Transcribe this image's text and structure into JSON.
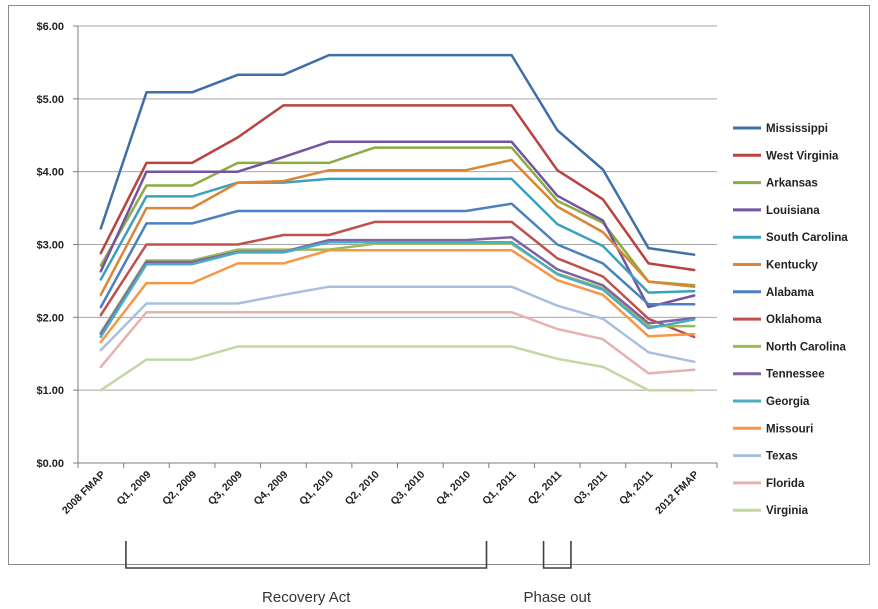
{
  "chart_data": {
    "type": "line",
    "title": "",
    "xlabel": "",
    "ylabel": "",
    "ylim": [
      0,
      6
    ],
    "yticks": [
      0,
      1,
      2,
      3,
      4,
      5,
      6
    ],
    "ytick_labels": [
      "$0.00",
      "$1.00",
      "$2.00",
      "$3.00",
      "$4.00",
      "$5.00",
      "$6.00"
    ],
    "grid": true,
    "legend_position": "right",
    "categories": [
      "2008 FMAP",
      "Q1, 2009",
      "Q2, 2009",
      "Q3, 2009",
      "Q4, 2009",
      "Q1, 2010",
      "Q2, 2010",
      "Q3, 2010",
      "Q4, 2010",
      "Q1, 2011",
      "Q2, 2011",
      "Q3, 2011",
      "Q4, 2011",
      "2012 FMAP"
    ],
    "series": [
      {
        "name": "Mississippi",
        "color": "#3f6fa8",
        "values": [
          3.22,
          5.09,
          5.09,
          5.33,
          5.33,
          5.6,
          5.6,
          5.6,
          5.6,
          5.6,
          4.57,
          4.03,
          2.95,
          2.86
        ]
      },
      {
        "name": "West Virginia",
        "color": "#b8433f",
        "values": [
          2.88,
          4.12,
          4.12,
          4.47,
          4.91,
          4.91,
          4.91,
          4.91,
          4.91,
          4.91,
          4.02,
          3.62,
          2.74,
          2.65
        ]
      },
      {
        "name": "Arkansas",
        "color": "#8cab43",
        "values": [
          2.71,
          3.81,
          3.81,
          4.12,
          4.12,
          4.12,
          4.33,
          4.33,
          4.33,
          4.33,
          3.6,
          3.3,
          2.49,
          2.44
        ]
      },
      {
        "name": "Louisiana",
        "color": "#7254a0",
        "values": [
          2.63,
          4.0,
          4.0,
          4.0,
          4.2,
          4.41,
          4.41,
          4.41,
          4.41,
          4.41,
          3.67,
          3.33,
          2.14,
          2.3
        ]
      },
      {
        "name": "South Carolina",
        "color": "#3ba1bd",
        "values": [
          2.52,
          3.66,
          3.66,
          3.85,
          3.85,
          3.9,
          3.9,
          3.9,
          3.9,
          3.9,
          3.28,
          2.98,
          2.34,
          2.36
        ]
      },
      {
        "name": "Kentucky",
        "color": "#db8536",
        "values": [
          2.31,
          3.5,
          3.5,
          3.85,
          3.87,
          4.02,
          4.02,
          4.02,
          4.02,
          4.16,
          3.52,
          3.17,
          2.49,
          2.42
        ]
      },
      {
        "name": "Alabama",
        "color": "#4c80c0",
        "values": [
          2.14,
          3.29,
          3.29,
          3.46,
          3.46,
          3.46,
          3.46,
          3.46,
          3.46,
          3.56,
          3.0,
          2.74,
          2.18,
          2.18
        ]
      },
      {
        "name": "Oklahoma",
        "color": "#c0504d",
        "values": [
          2.03,
          3.0,
          3.0,
          3.0,
          3.13,
          3.13,
          3.31,
          3.31,
          3.31,
          3.31,
          2.81,
          2.56,
          1.98,
          1.73
        ]
      },
      {
        "name": "North Carolina",
        "color": "#9bbb59",
        "values": [
          1.79,
          2.78,
          2.78,
          2.93,
          2.93,
          2.93,
          3.01,
          3.01,
          3.01,
          3.01,
          2.6,
          2.4,
          1.88,
          1.88
        ]
      },
      {
        "name": "Tennessee",
        "color": "#8064a2",
        "values": [
          1.77,
          2.76,
          2.76,
          2.9,
          2.9,
          3.06,
          3.06,
          3.06,
          3.06,
          3.1,
          2.66,
          2.44,
          1.92,
          1.99
        ]
      },
      {
        "name": "Georgia",
        "color": "#4bacc6",
        "values": [
          1.73,
          2.73,
          2.73,
          2.89,
          2.89,
          3.03,
          3.03,
          3.03,
          3.03,
          3.03,
          2.59,
          2.38,
          1.85,
          1.97
        ]
      },
      {
        "name": "Missouri",
        "color": "#f79646",
        "values": [
          1.66,
          2.47,
          2.47,
          2.74,
          2.74,
          2.92,
          2.92,
          2.92,
          2.92,
          2.92,
          2.51,
          2.31,
          1.74,
          1.77
        ]
      },
      {
        "name": "Texas",
        "color": "#a9bfde",
        "values": [
          1.55,
          2.19,
          2.19,
          2.19,
          2.31,
          2.42,
          2.42,
          2.42,
          2.42,
          2.42,
          2.16,
          1.98,
          1.52,
          1.39
        ]
      },
      {
        "name": "Florida",
        "color": "#e6b2b1",
        "values": [
          1.32,
          2.07,
          2.07,
          2.07,
          2.07,
          2.07,
          2.07,
          2.07,
          2.07,
          2.07,
          1.84,
          1.7,
          1.23,
          1.28
        ]
      },
      {
        "name": "Virginia",
        "color": "#c4d8a6",
        "values": [
          1.0,
          1.42,
          1.42,
          1.6,
          1.6,
          1.6,
          1.6,
          1.6,
          1.6,
          1.6,
          1.43,
          1.32,
          1.0,
          1.0
        ]
      }
    ],
    "annotations": [
      {
        "label": "Recovery Act",
        "from": "Q1, 2009",
        "to": "Q4, 2010"
      },
      {
        "label": "Phase out",
        "from": "Q2, 2011",
        "to": "Q3, 2011"
      }
    ]
  }
}
